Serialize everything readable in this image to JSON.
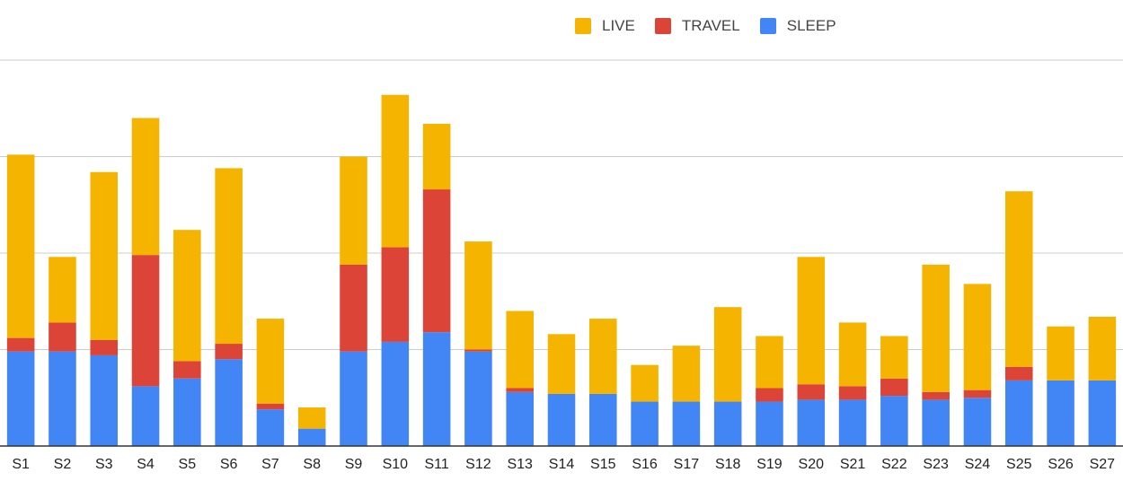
{
  "chart_data": {
    "type": "bar",
    "stacked": true,
    "categories": [
      "S1",
      "S2",
      "S3",
      "S4",
      "S5",
      "S6",
      "S7",
      "S8",
      "S9",
      "S10",
      "S11",
      "S12",
      "S13",
      "S14",
      "S15",
      "S16",
      "S17",
      "S18",
      "S19",
      "S20",
      "S21",
      "S22",
      "S23",
      "S24",
      "S25",
      "S26",
      "S27"
    ],
    "series": [
      {
        "name": "SLEEP",
        "color": "#4285f4",
        "values": [
          49,
          49,
          47,
          31,
          35,
          45,
          19,
          9,
          49,
          54,
          59,
          49,
          28,
          27,
          27,
          23,
          23,
          23,
          23,
          24,
          24,
          26,
          24,
          25,
          34,
          34,
          34
        ]
      },
      {
        "name": "TRAVEL",
        "color": "#db4437",
        "values": [
          7,
          15,
          8,
          68,
          9,
          8,
          3,
          0,
          45,
          49,
          74,
          1,
          2,
          0,
          0,
          0,
          0,
          0,
          7,
          8,
          7,
          9,
          4,
          4,
          7,
          0,
          0
        ]
      },
      {
        "name": "LIVE",
        "color": "#f4b400",
        "values": [
          95,
          34,
          87,
          71,
          68,
          91,
          44,
          11,
          56,
          79,
          34,
          56,
          40,
          31,
          39,
          19,
          29,
          49,
          27,
          66,
          33,
          22,
          66,
          55,
          91,
          28,
          33
        ]
      }
    ],
    "ylim": [
      0,
      200
    ],
    "grid": true,
    "legend_position": "top-center",
    "title": "",
    "xlabel": "",
    "ylabel": ""
  }
}
